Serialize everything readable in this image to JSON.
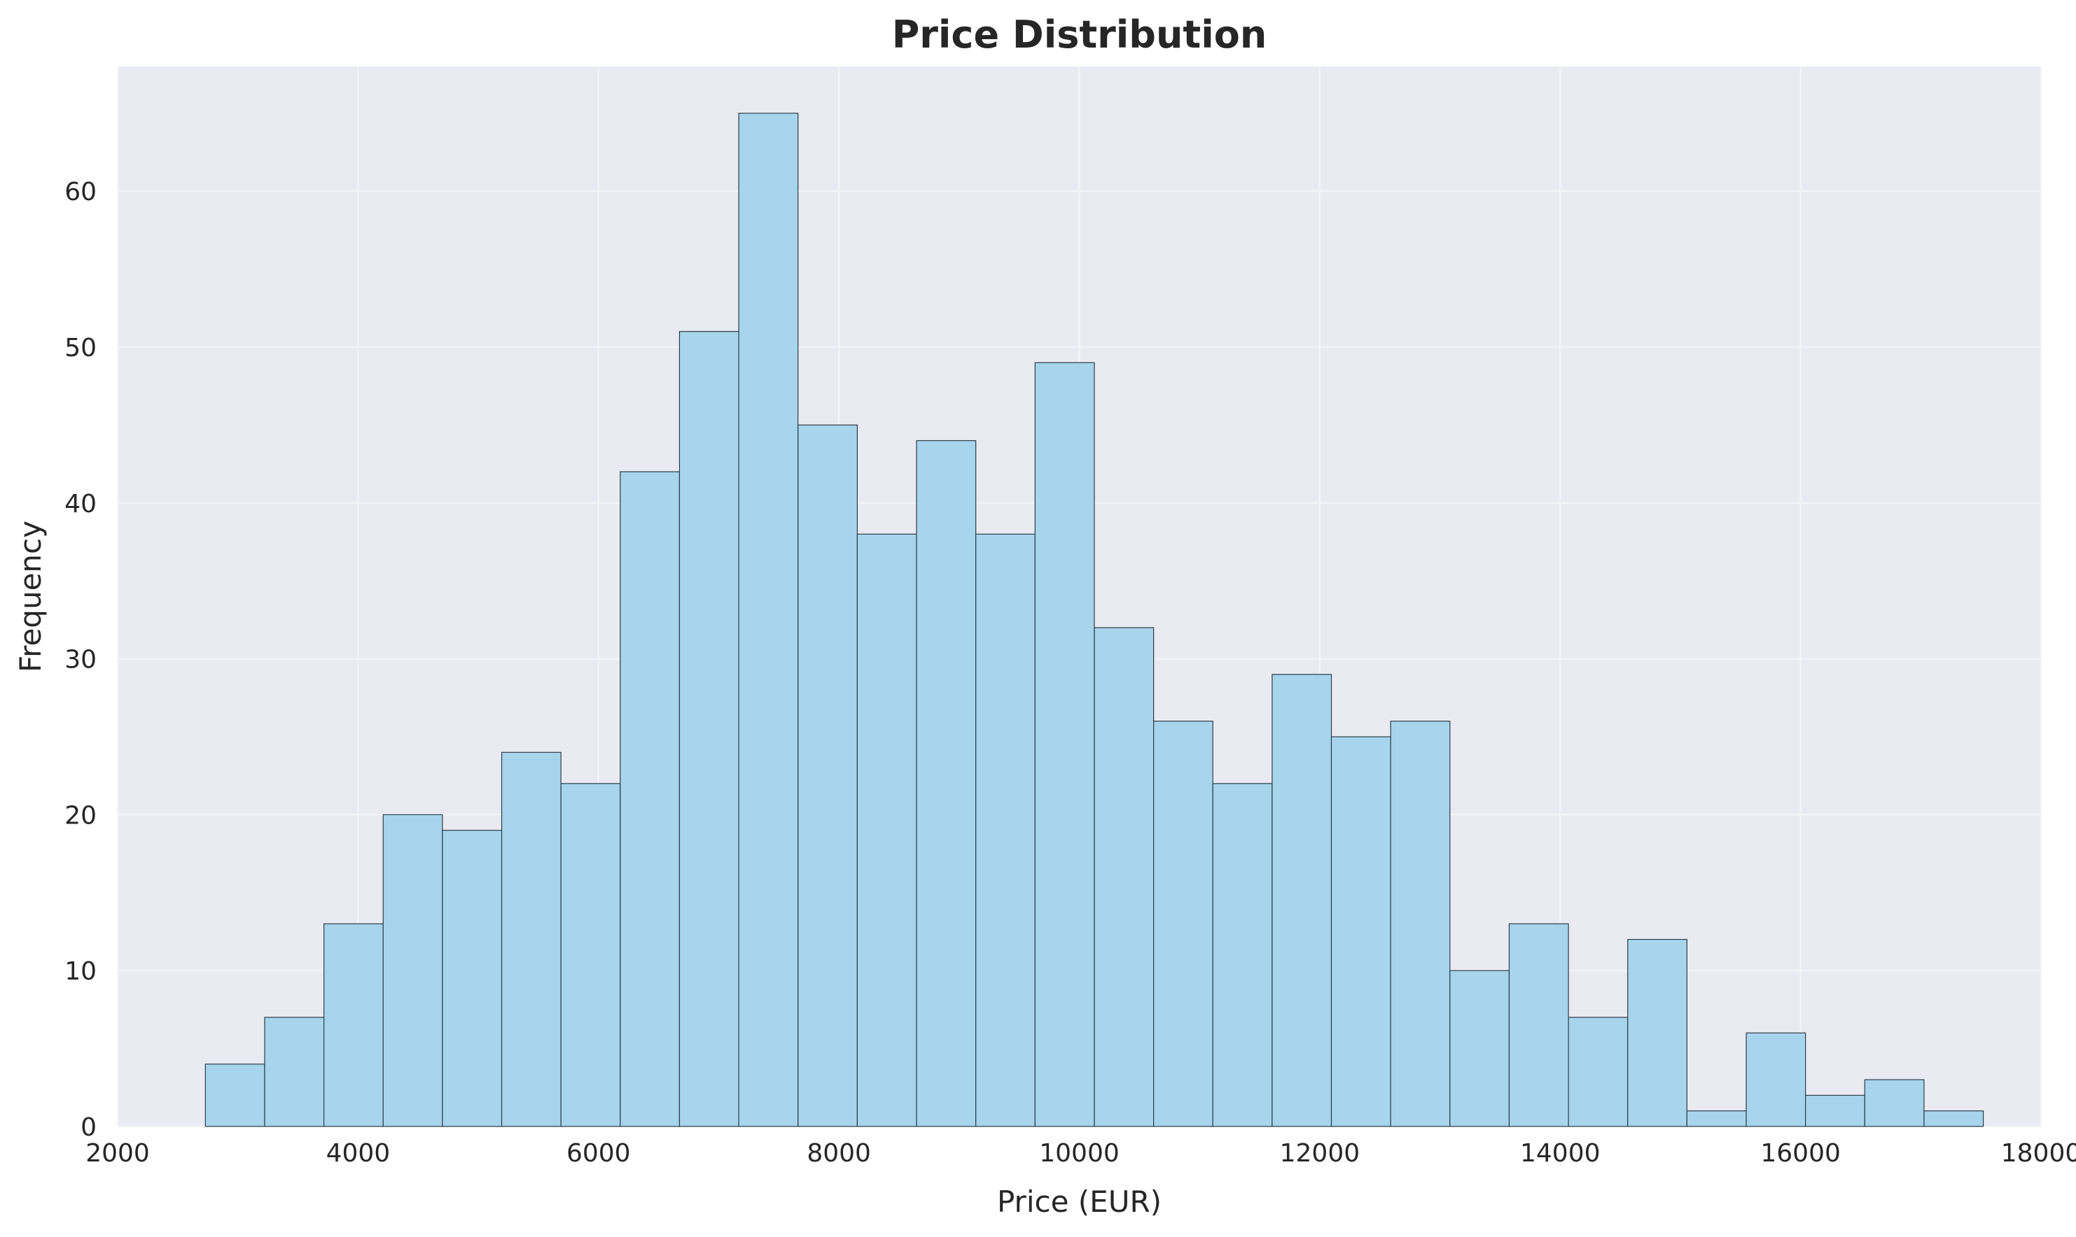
{
  "chart_data": {
    "type": "bar",
    "subtype": "histogram",
    "title": "Price Distribution",
    "xlabel": "Price (EUR)",
    "ylabel": "Frequency",
    "xlim": [
      2000,
      18000
    ],
    "ylim": [
      0,
      68
    ],
    "xticks": [
      2000,
      4000,
      6000,
      8000,
      10000,
      12000,
      14000,
      16000,
      18000
    ],
    "yticks": [
      0,
      10,
      20,
      30,
      40,
      50,
      60
    ],
    "bin_start": 2730,
    "bin_width": 493,
    "values": [
      4,
      7,
      13,
      20,
      19,
      24,
      22,
      42,
      51,
      65,
      45,
      38,
      44,
      38,
      49,
      32,
      26,
      22,
      29,
      25,
      26,
      10,
      13,
      7,
      12,
      1,
      6,
      2,
      3,
      1
    ],
    "grid": true,
    "legend": "none",
    "colors": {
      "plot_background": "#EAEAF2",
      "bar_fill": "#A6D5EC",
      "bar_edge": "#2F3D46",
      "grid": "#F5F5F8",
      "text": "#262626"
    }
  }
}
